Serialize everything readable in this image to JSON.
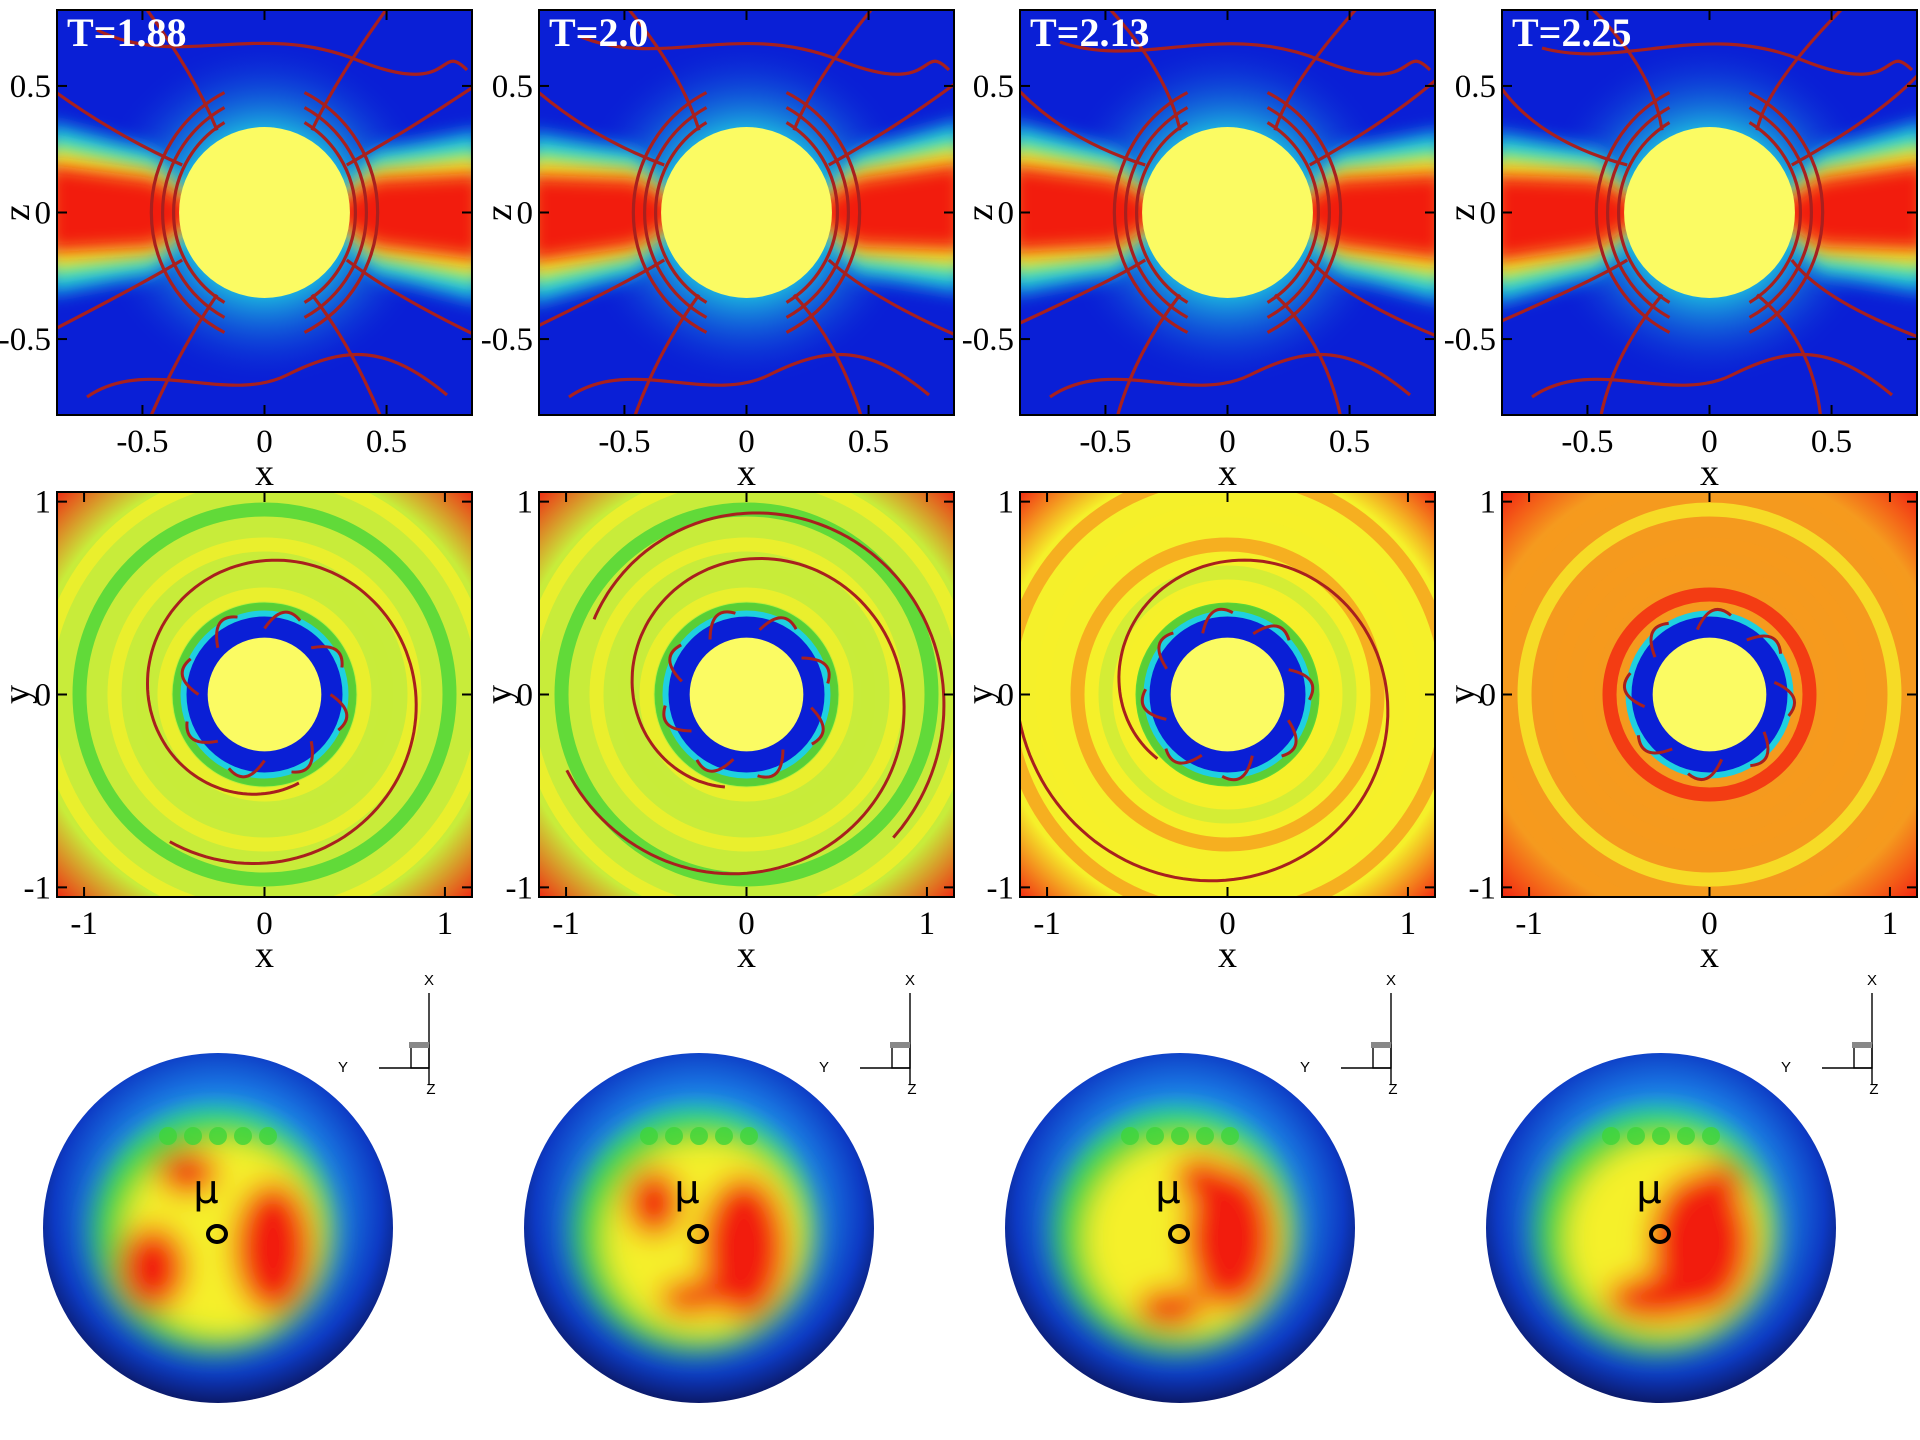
{
  "colors": {
    "low": "#0a1fd6",
    "mid": "#1fd0e0",
    "green": "#3fd43a",
    "yellow_green": "#c8ec3a",
    "yellow": "#f5f02a",
    "orange": "#f59a1e",
    "high": "#f21c10",
    "star": "#fbfb63",
    "field_line": "#a8201e",
    "disk_edge": "#0b1a6a"
  },
  "chart_data": [
    {
      "type": "heatmap",
      "row": "xz-slice",
      "time_label": "T=1.88",
      "xlabel": "x",
      "ylabel": "z",
      "xlim": [
        -0.85,
        0.85
      ],
      "ylim": [
        -0.8,
        0.8
      ],
      "xticks": [
        "-0.5",
        "0",
        "0.5"
      ],
      "yticks": [
        "0.5",
        "0",
        "-0.5"
      ],
      "xtick_values": [
        -0.5,
        0,
        0.5
      ],
      "ytick_values": [
        0.5,
        0,
        -0.5
      ],
      "star_radius": 0.35
    },
    {
      "type": "heatmap",
      "row": "xz-slice",
      "time_label": "T=2.0",
      "xlabel": "x",
      "ylabel": "z",
      "xlim": [
        -0.85,
        0.85
      ],
      "ylim": [
        -0.8,
        0.8
      ],
      "xticks": [
        "-0.5",
        "0",
        "0.5"
      ],
      "yticks": [
        "0.5",
        "0",
        "-0.5"
      ],
      "xtick_values": [
        -0.5,
        0,
        0.5
      ],
      "ytick_values": [
        0.5,
        0,
        -0.5
      ],
      "star_radius": 0.35
    },
    {
      "type": "heatmap",
      "row": "xz-slice",
      "time_label": "T=2.13",
      "xlabel": "x",
      "ylabel": "z",
      "xlim": [
        -0.85,
        0.85
      ],
      "ylim": [
        -0.8,
        0.8
      ],
      "xticks": [
        "-0.5",
        "0",
        "0.5"
      ],
      "yticks": [
        "0.5",
        "0",
        "-0.5"
      ],
      "xtick_values": [
        -0.5,
        0,
        0.5
      ],
      "ytick_values": [
        0.5,
        0,
        -0.5
      ],
      "star_radius": 0.35
    },
    {
      "type": "heatmap",
      "row": "xz-slice",
      "time_label": "T=2.25",
      "xlabel": "x",
      "ylabel": "z",
      "xlim": [
        -0.85,
        0.85
      ],
      "ylim": [
        -0.8,
        0.8
      ],
      "xticks": [
        "-0.5",
        "0",
        "0.5"
      ],
      "yticks": [
        "0.5",
        "0",
        "-0.5"
      ],
      "xtick_values": [
        -0.5,
        0,
        0.5
      ],
      "ytick_values": [
        0.5,
        0,
        -0.5
      ],
      "star_radius": 0.35
    },
    {
      "type": "heatmap",
      "row": "xy-slice",
      "xlabel": "x",
      "ylabel": "y",
      "xlim": [
        -1.15,
        1.15
      ],
      "ylim": [
        -1.05,
        1.05
      ],
      "xticks": [
        "-1",
        "0",
        "1"
      ],
      "yticks": [
        "1",
        "0",
        "-1"
      ],
      "xtick_values": [
        -1,
        0,
        1
      ],
      "ytick_values": [
        1,
        0,
        -1
      ],
      "star_radius": 0.35
    },
    {
      "type": "heatmap",
      "row": "xy-slice",
      "xlabel": "x",
      "ylabel": "y",
      "xlim": [
        -1.15,
        1.15
      ],
      "ylim": [
        -1.05,
        1.05
      ],
      "xticks": [
        "-1",
        "0",
        "1"
      ],
      "yticks": [
        "1",
        "0",
        "-1"
      ],
      "xtick_values": [
        -1,
        0,
        1
      ],
      "ytick_values": [
        1,
        0,
        -1
      ],
      "star_radius": 0.35
    },
    {
      "type": "heatmap",
      "row": "xy-slice",
      "xlabel": "x",
      "ylabel": "y",
      "xlim": [
        -1.15,
        1.15
      ],
      "ylim": [
        -1.05,
        1.05
      ],
      "xticks": [
        "-1",
        "0",
        "1"
      ],
      "yticks": [
        "1",
        "0",
        "-1"
      ],
      "xtick_values": [
        -1,
        0,
        1
      ],
      "ytick_values": [
        1,
        0,
        -1
      ],
      "star_radius": 0.35
    },
    {
      "type": "heatmap",
      "row": "xy-slice",
      "xlabel": "x",
      "ylabel": "y",
      "xlim": [
        -1.15,
        1.15
      ],
      "ylim": [
        -1.05,
        1.05
      ],
      "xticks": [
        "-1",
        "0",
        "1"
      ],
      "yticks": [
        "1",
        "0",
        "-1"
      ],
      "xtick_values": [
        -1,
        0,
        1
      ],
      "ytick_values": [
        1,
        0,
        -1
      ],
      "star_radius": 0.35
    },
    {
      "type": "heatmap",
      "row": "stellar-surface",
      "moment_label": "μ",
      "triad": {
        "x": "X",
        "y": "Y",
        "z": "Z"
      }
    },
    {
      "type": "heatmap",
      "row": "stellar-surface",
      "moment_label": "μ",
      "triad": {
        "x": "X",
        "y": "Y",
        "z": "Z"
      }
    },
    {
      "type": "heatmap",
      "row": "stellar-surface",
      "moment_label": "μ",
      "triad": {
        "x": "X",
        "y": "Y",
        "z": "Z"
      }
    },
    {
      "type": "heatmap",
      "row": "stellar-surface",
      "moment_label": "μ",
      "triad": {
        "x": "X",
        "y": "Y",
        "z": "Z"
      }
    }
  ]
}
